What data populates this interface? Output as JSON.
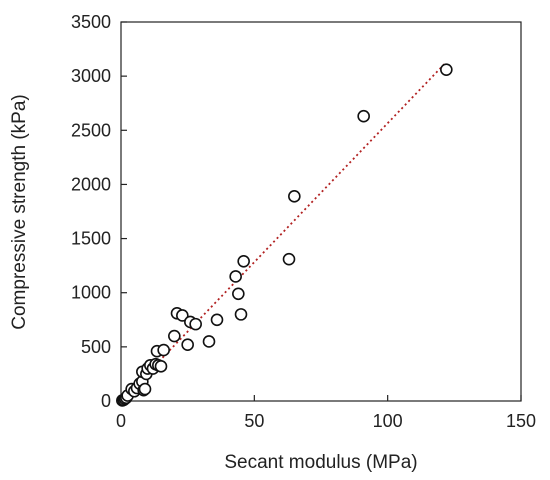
{
  "chart_data": {
    "type": "scatter",
    "xlabel": "Secant modulus (MPa)",
    "ylabel": "Compressive strength (kPa)",
    "xlim": [
      0,
      150
    ],
    "ylim": [
      0,
      3500
    ],
    "xticks": [
      0,
      50,
      100,
      150
    ],
    "yticks": [
      0,
      500,
      1000,
      1500,
      2000,
      2500,
      3000,
      3500
    ],
    "xtick_labels": [
      "0",
      "50",
      "100",
      "150"
    ],
    "ytick_labels": [
      "0",
      "500",
      "1000",
      "1500",
      "2000",
      "2500",
      "3000",
      "3500"
    ],
    "grid": false,
    "legend": "none",
    "series": [
      {
        "marker": "open-circle",
        "points": [
          [
            0.5,
            5
          ],
          [
            1,
            10
          ],
          [
            1.5,
            20
          ],
          [
            2,
            30
          ],
          [
            2.5,
            50
          ],
          [
            4,
            110
          ],
          [
            5,
            90
          ],
          [
            6,
            120
          ],
          [
            7,
            160
          ],
          [
            8,
            180
          ],
          [
            8.5,
            100
          ],
          [
            9,
            110
          ],
          [
            8,
            270
          ],
          [
            9.5,
            250
          ],
          [
            10,
            300
          ],
          [
            11,
            330
          ],
          [
            12,
            300
          ],
          [
            13,
            340
          ],
          [
            14,
            330
          ],
          [
            15,
            320
          ],
          [
            13.5,
            460
          ],
          [
            16,
            470
          ],
          [
            20,
            600
          ],
          [
            21,
            810
          ],
          [
            23,
            790
          ],
          [
            25,
            520
          ],
          [
            26,
            730
          ],
          [
            28,
            710
          ],
          [
            33,
            550
          ],
          [
            36,
            750
          ],
          [
            43,
            1150
          ],
          [
            44,
            990
          ],
          [
            45,
            800
          ],
          [
            46,
            1290
          ],
          [
            63,
            1310
          ],
          [
            65,
            1890
          ],
          [
            91,
            2630
          ],
          [
            122,
            3060
          ]
        ]
      }
    ],
    "trendline": {
      "style": "dotted",
      "color": "#b22222",
      "x": [
        0,
        122
      ],
      "y": [
        0,
        3130
      ]
    }
  },
  "colors": {
    "axis": "#222222",
    "marker_stroke": "#111111",
    "marker_fill": "#ffffff"
  }
}
